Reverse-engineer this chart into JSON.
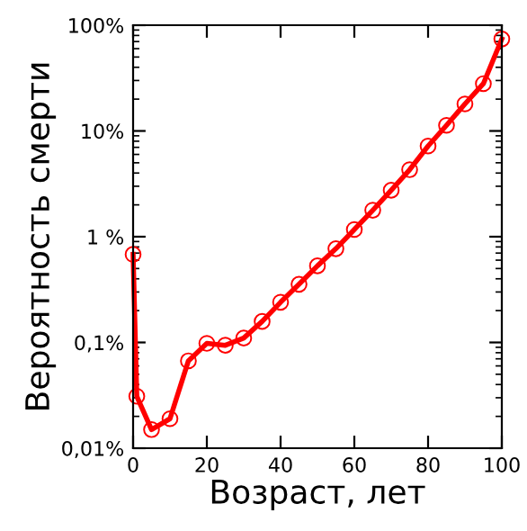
{
  "chart_data": {
    "type": "line",
    "xlabel": "Возраст, лет",
    "ylabel": "Вероятность смерти",
    "log": "y",
    "marker": "circle",
    "line_style": "solid",
    "grid": false,
    "legend": false,
    "x": [
      0,
      1,
      5,
      10,
      15,
      20,
      25,
      30,
      35,
      40,
      45,
      50,
      55,
      60,
      65,
      70,
      75,
      80,
      85,
      90,
      95,
      100
    ],
    "series": [
      {
        "color": "#ff0000",
        "values": [
          0.68,
          0.031,
          0.015,
          0.019,
          0.067,
          0.098,
          0.094,
          0.11,
          0.158,
          0.24,
          0.355,
          0.53,
          0.77,
          1.17,
          1.78,
          2.75,
          4.3,
          7.2,
          11.3,
          18,
          28,
          74
        ]
      }
    ],
    "xlim": [
      0,
      100
    ],
    "xticks": [
      0,
      20,
      40,
      60,
      80,
      100
    ],
    "ylim": [
      0.01,
      100
    ],
    "yticks": [
      {
        "value": 0.01,
        "label": "0,01%"
      },
      {
        "value": 0.1,
        "label": "0,1%"
      },
      {
        "value": 1,
        "label": "1 %"
      },
      {
        "value": 10,
        "label": "10%"
      },
      {
        "value": 100,
        "label": "100%"
      }
    ]
  }
}
